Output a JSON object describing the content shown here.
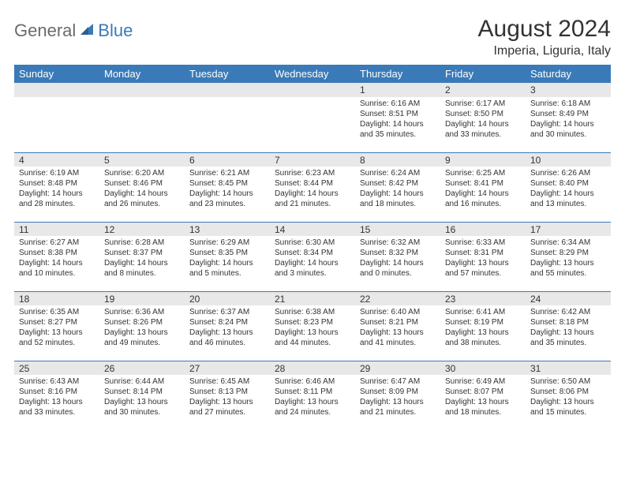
{
  "logo": {
    "general": "General",
    "blue": "Blue"
  },
  "title": "August 2024",
  "location": "Imperia, Liguria, Italy",
  "dayHeaders": [
    "Sunday",
    "Monday",
    "Tuesday",
    "Wednesday",
    "Thursday",
    "Friday",
    "Saturday"
  ],
  "colors": {
    "header_bg": "#3a7ab8",
    "header_text": "#ffffff",
    "daynum_bg": "#e8e8e8",
    "row_divider": "#3a7ab8",
    "text": "#333333",
    "logo_gray": "#6b6b6b",
    "logo_blue": "#3a7ab8",
    "background": "#ffffff"
  },
  "weeks": [
    [
      {
        "num": "",
        "sunrise": "",
        "sunset": "",
        "daylight": ""
      },
      {
        "num": "",
        "sunrise": "",
        "sunset": "",
        "daylight": ""
      },
      {
        "num": "",
        "sunrise": "",
        "sunset": "",
        "daylight": ""
      },
      {
        "num": "",
        "sunrise": "",
        "sunset": "",
        "daylight": ""
      },
      {
        "num": "1",
        "sunrise": "Sunrise: 6:16 AM",
        "sunset": "Sunset: 8:51 PM",
        "daylight": "Daylight: 14 hours and 35 minutes."
      },
      {
        "num": "2",
        "sunrise": "Sunrise: 6:17 AM",
        "sunset": "Sunset: 8:50 PM",
        "daylight": "Daylight: 14 hours and 33 minutes."
      },
      {
        "num": "3",
        "sunrise": "Sunrise: 6:18 AM",
        "sunset": "Sunset: 8:49 PM",
        "daylight": "Daylight: 14 hours and 30 minutes."
      }
    ],
    [
      {
        "num": "4",
        "sunrise": "Sunrise: 6:19 AM",
        "sunset": "Sunset: 8:48 PM",
        "daylight": "Daylight: 14 hours and 28 minutes."
      },
      {
        "num": "5",
        "sunrise": "Sunrise: 6:20 AM",
        "sunset": "Sunset: 8:46 PM",
        "daylight": "Daylight: 14 hours and 26 minutes."
      },
      {
        "num": "6",
        "sunrise": "Sunrise: 6:21 AM",
        "sunset": "Sunset: 8:45 PM",
        "daylight": "Daylight: 14 hours and 23 minutes."
      },
      {
        "num": "7",
        "sunrise": "Sunrise: 6:23 AM",
        "sunset": "Sunset: 8:44 PM",
        "daylight": "Daylight: 14 hours and 21 minutes."
      },
      {
        "num": "8",
        "sunrise": "Sunrise: 6:24 AM",
        "sunset": "Sunset: 8:42 PM",
        "daylight": "Daylight: 14 hours and 18 minutes."
      },
      {
        "num": "9",
        "sunrise": "Sunrise: 6:25 AM",
        "sunset": "Sunset: 8:41 PM",
        "daylight": "Daylight: 14 hours and 16 minutes."
      },
      {
        "num": "10",
        "sunrise": "Sunrise: 6:26 AM",
        "sunset": "Sunset: 8:40 PM",
        "daylight": "Daylight: 14 hours and 13 minutes."
      }
    ],
    [
      {
        "num": "11",
        "sunrise": "Sunrise: 6:27 AM",
        "sunset": "Sunset: 8:38 PM",
        "daylight": "Daylight: 14 hours and 10 minutes."
      },
      {
        "num": "12",
        "sunrise": "Sunrise: 6:28 AM",
        "sunset": "Sunset: 8:37 PM",
        "daylight": "Daylight: 14 hours and 8 minutes."
      },
      {
        "num": "13",
        "sunrise": "Sunrise: 6:29 AM",
        "sunset": "Sunset: 8:35 PM",
        "daylight": "Daylight: 14 hours and 5 minutes."
      },
      {
        "num": "14",
        "sunrise": "Sunrise: 6:30 AM",
        "sunset": "Sunset: 8:34 PM",
        "daylight": "Daylight: 14 hours and 3 minutes."
      },
      {
        "num": "15",
        "sunrise": "Sunrise: 6:32 AM",
        "sunset": "Sunset: 8:32 PM",
        "daylight": "Daylight: 14 hours and 0 minutes."
      },
      {
        "num": "16",
        "sunrise": "Sunrise: 6:33 AM",
        "sunset": "Sunset: 8:31 PM",
        "daylight": "Daylight: 13 hours and 57 minutes."
      },
      {
        "num": "17",
        "sunrise": "Sunrise: 6:34 AM",
        "sunset": "Sunset: 8:29 PM",
        "daylight": "Daylight: 13 hours and 55 minutes."
      }
    ],
    [
      {
        "num": "18",
        "sunrise": "Sunrise: 6:35 AM",
        "sunset": "Sunset: 8:27 PM",
        "daylight": "Daylight: 13 hours and 52 minutes."
      },
      {
        "num": "19",
        "sunrise": "Sunrise: 6:36 AM",
        "sunset": "Sunset: 8:26 PM",
        "daylight": "Daylight: 13 hours and 49 minutes."
      },
      {
        "num": "20",
        "sunrise": "Sunrise: 6:37 AM",
        "sunset": "Sunset: 8:24 PM",
        "daylight": "Daylight: 13 hours and 46 minutes."
      },
      {
        "num": "21",
        "sunrise": "Sunrise: 6:38 AM",
        "sunset": "Sunset: 8:23 PM",
        "daylight": "Daylight: 13 hours and 44 minutes."
      },
      {
        "num": "22",
        "sunrise": "Sunrise: 6:40 AM",
        "sunset": "Sunset: 8:21 PM",
        "daylight": "Daylight: 13 hours and 41 minutes."
      },
      {
        "num": "23",
        "sunrise": "Sunrise: 6:41 AM",
        "sunset": "Sunset: 8:19 PM",
        "daylight": "Daylight: 13 hours and 38 minutes."
      },
      {
        "num": "24",
        "sunrise": "Sunrise: 6:42 AM",
        "sunset": "Sunset: 8:18 PM",
        "daylight": "Daylight: 13 hours and 35 minutes."
      }
    ],
    [
      {
        "num": "25",
        "sunrise": "Sunrise: 6:43 AM",
        "sunset": "Sunset: 8:16 PM",
        "daylight": "Daylight: 13 hours and 33 minutes."
      },
      {
        "num": "26",
        "sunrise": "Sunrise: 6:44 AM",
        "sunset": "Sunset: 8:14 PM",
        "daylight": "Daylight: 13 hours and 30 minutes."
      },
      {
        "num": "27",
        "sunrise": "Sunrise: 6:45 AM",
        "sunset": "Sunset: 8:13 PM",
        "daylight": "Daylight: 13 hours and 27 minutes."
      },
      {
        "num": "28",
        "sunrise": "Sunrise: 6:46 AM",
        "sunset": "Sunset: 8:11 PM",
        "daylight": "Daylight: 13 hours and 24 minutes."
      },
      {
        "num": "29",
        "sunrise": "Sunrise: 6:47 AM",
        "sunset": "Sunset: 8:09 PM",
        "daylight": "Daylight: 13 hours and 21 minutes."
      },
      {
        "num": "30",
        "sunrise": "Sunrise: 6:49 AM",
        "sunset": "Sunset: 8:07 PM",
        "daylight": "Daylight: 13 hours and 18 minutes."
      },
      {
        "num": "31",
        "sunrise": "Sunrise: 6:50 AM",
        "sunset": "Sunset: 8:06 PM",
        "daylight": "Daylight: 13 hours and 15 minutes."
      }
    ]
  ]
}
